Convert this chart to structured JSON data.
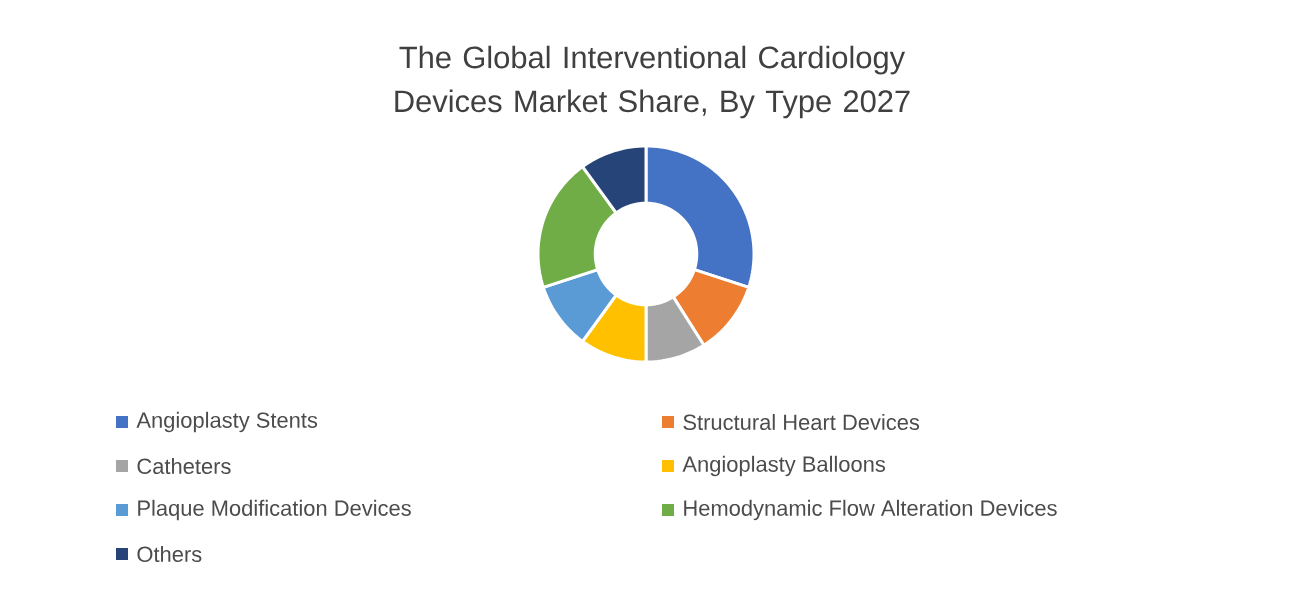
{
  "chart_data": {
    "type": "donut",
    "title": "The Global Interventional Cardiology Devices Market Share, By Type 2027",
    "categories": [
      "Angioplasty Stents",
      "Structural Heart Devices",
      "Catheters",
      "Angioplasty Balloons",
      "Plaque Modification Devices",
      "Hemodynamic Flow Alteration Devices",
      "Others"
    ],
    "values": [
      30,
      11,
      9,
      10,
      10,
      20,
      10
    ],
    "colors": [
      "#4472c4",
      "#ed7d31",
      "#a5a5a5",
      "#ffc000",
      "#5b9bd5",
      "#70ad47",
      "#264478"
    ],
    "legend": "bottom"
  }
}
